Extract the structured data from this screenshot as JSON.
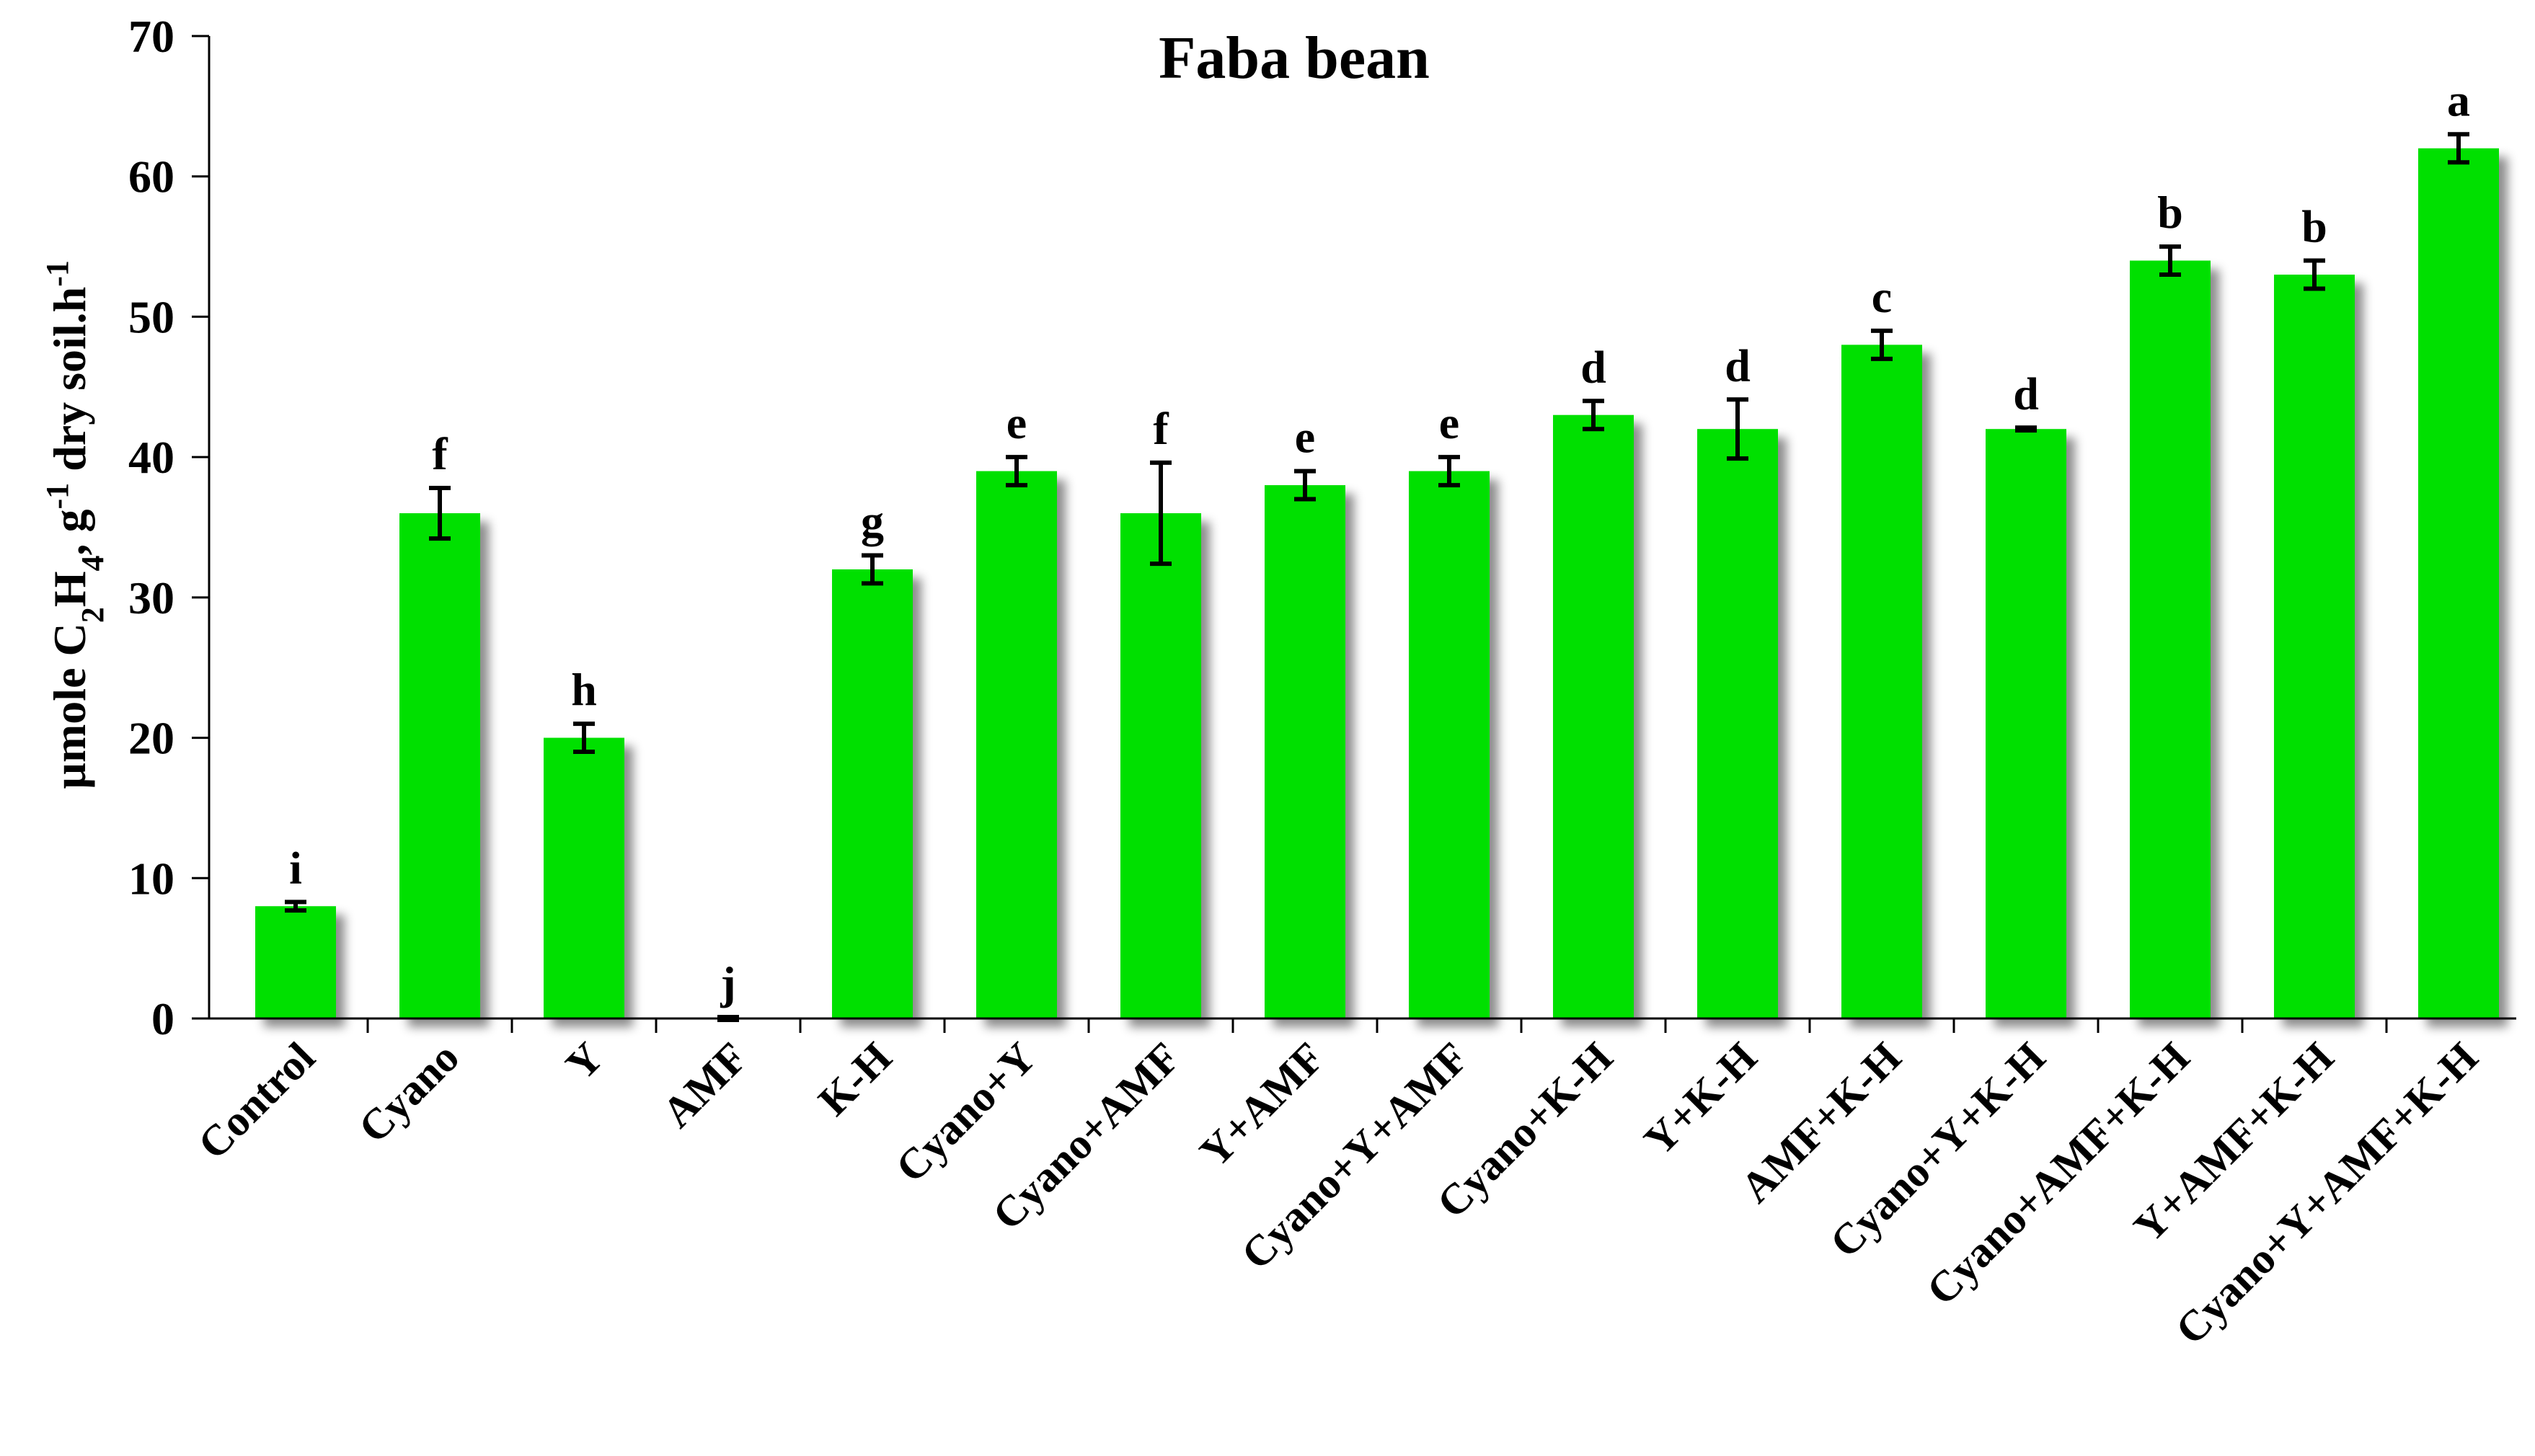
{
  "chart_data": {
    "type": "bar",
    "title": "Faba bean",
    "ylabel": {
      "prefix": "µmole  C",
      "sub1": "2",
      "mid1": "H",
      "sub2": "4",
      "mid2": ", g",
      "sup1": "-1",
      "mid3": " dry soil.h",
      "sup2": "-1"
    },
    "xlabel": "",
    "ylim": [
      0,
      70
    ],
    "yticks": [
      0,
      10,
      20,
      30,
      40,
      50,
      60,
      70
    ],
    "grid": false,
    "bar_color": "#00e000",
    "categories": [
      "Control",
      "Cyano",
      "Y",
      "AMF",
      "K-H",
      "Cyano+Y",
      "Cyano+AMF",
      "Y+AMF",
      "Cyano+Y+AMF",
      "Cyano+K-H",
      "Y+K-H",
      "AMF+K-H",
      "Cyano+Y+K-H",
      "Cyano+AMF+K-H",
      "Y+AMF+K-H",
      "Cyano+Y+AMF+K-H"
    ],
    "values": [
      8,
      36,
      20,
      0,
      32,
      39,
      36,
      38,
      39,
      43,
      42,
      48,
      42,
      54,
      53,
      62
    ],
    "errors": [
      0.3,
      1.8,
      1.0,
      0.1,
      1.0,
      1.0,
      3.6,
      1.0,
      1.0,
      1.0,
      2.1,
      1.0,
      0.1,
      1.0,
      1.0,
      1.0
    ],
    "letters": [
      "i",
      "f",
      "h",
      "j",
      "g",
      "e",
      "f",
      "e",
      "e",
      "d",
      "d",
      "c",
      "d",
      "b",
      "b",
      "a"
    ]
  }
}
